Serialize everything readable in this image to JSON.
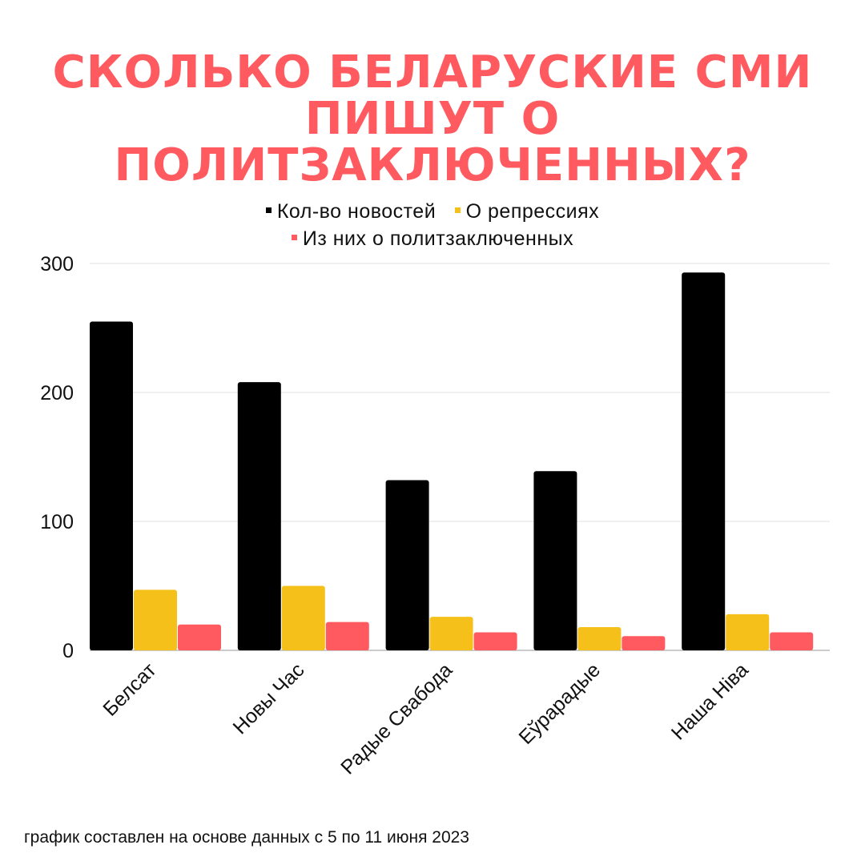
{
  "title": {
    "line1": "СКОЛЬКО БЕЛАРУСКИЕ СМИ",
    "line2": "ПИШУТ О ПОЛИТЗАКЛЮЧЕННЫХ?"
  },
  "footnote": "график составлен на основе данных с 5 по 11 июня 2023",
  "chart_data": {
    "type": "bar",
    "categories": [
      "Белсат",
      "Новы Час",
      "Радые Свабода",
      "Еўрарадые",
      "Наша Ніва"
    ],
    "series": [
      {
        "name": "Кол-во новостей",
        "color": "#000000",
        "values": [
          255,
          208,
          132,
          139,
          293
        ]
      },
      {
        "name": "О репрессиях",
        "color": "#f5c01a",
        "values": [
          47,
          50,
          26,
          18,
          28
        ]
      },
      {
        "name": "Из них о политзаключенных",
        "color": "#ff5a5f",
        "values": [
          20,
          22,
          14,
          11,
          14
        ]
      }
    ],
    "ylim": [
      0,
      300
    ],
    "yticks": [
      0,
      100,
      200,
      300
    ],
    "grid": true,
    "legend_position": "top",
    "xlabel": "",
    "ylabel": ""
  }
}
